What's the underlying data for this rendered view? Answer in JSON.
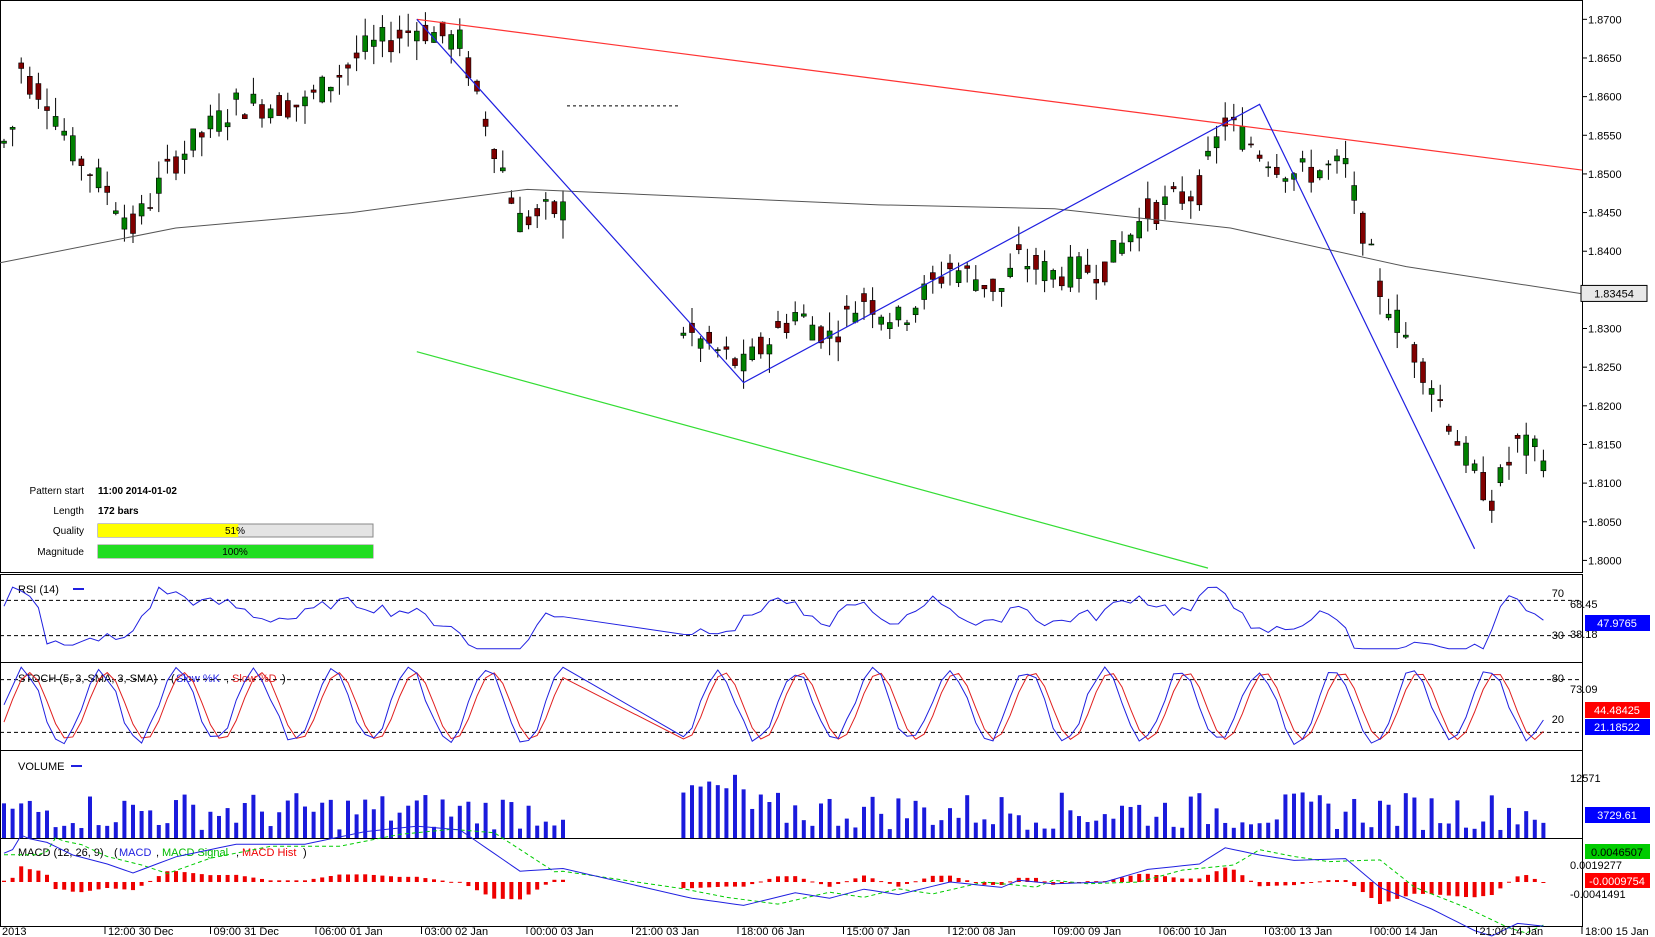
{
  "chart_data": [
    {
      "type": "candlestick",
      "ylim": [
        1.8,
        1.87
      ],
      "yticks": [
        "1.8700",
        "1.8650",
        "1.8600",
        "1.8550",
        "1.8500",
        "1.8450",
        "1.8400",
        "1.8350",
        "1.8300",
        "1.8250",
        "1.8200",
        "1.8150",
        "1.8100",
        "1.8050",
        "1.8000"
      ],
      "ytick_values": [
        1.87,
        1.865,
        1.86,
        1.855,
        1.85,
        1.845,
        1.84,
        1.835,
        1.83,
        1.825,
        1.82,
        1.815,
        1.81,
        1.805,
        1.8
      ],
      "current_price": "1.83454",
      "current_price_value": 1.83454,
      "xticks": [
        "2013",
        "12:00 30 Dec",
        "09:00 31 Dec",
        "06:00 01 Jan",
        "03:00 02 Jan",
        "00:00 03 Jan",
        "21:00 03 Jan",
        "18:00 06 Jan",
        "15:00 07 Jan",
        "12:00 08 Jan",
        "09:00 09 Jan",
        "06:00 10 Jan",
        "03:00 13 Jan",
        "00:00 14 Jan",
        "21:00 14 Jan",
        "18:00 15 Jan"
      ],
      "price_path_x": [
        0,
        1,
        2,
        3,
        5,
        8,
        12,
        15,
        20,
        27,
        35,
        42,
        48,
        53,
        60,
        70,
        73,
        80,
        86,
        92,
        96,
        100,
        104,
        110,
        116,
        118,
        122,
        128,
        133,
        139,
        142,
        146,
        150,
        156,
        160,
        166,
        171,
        173,
        176,
        180
      ],
      "price_path_y": [
        1.854,
        1.856,
        1.864,
        1.862,
        1.86,
        1.853,
        1.848,
        1.843,
        1.852,
        1.859,
        1.859,
        1.866,
        1.869,
        1.867,
        1.844,
        1.847,
        1.836,
        1.829,
        1.825,
        1.832,
        1.829,
        1.834,
        1.831,
        1.838,
        1.835,
        1.839,
        1.837,
        1.838,
        1.845,
        1.848,
        1.857,
        1.853,
        1.85,
        1.851,
        1.835,
        1.823,
        1.811,
        1.808,
        1.815,
        1.813
      ],
      "patterns": {
        "resistance": {
          "from": [
            1.87
          ],
          "to": [
            1.8505
          ],
          "color": "#ff3333"
        },
        "support": {
          "from": [
            1.827
          ],
          "to": [
            1.799
          ],
          "color": "#33dd33"
        },
        "zigzag": {
          "values": [
            1.87,
            1.823,
            1.859,
            1.8015
          ],
          "color": "#2020e0"
        },
        "moving_average": {
          "values": [
            1.8385,
            1.843,
            1.845,
            1.848,
            1.847,
            1.846,
            1.8455,
            1.843,
            1.838,
            1.8345
          ]
        }
      }
    },
    {
      "type": "line",
      "title": "RSI (14)",
      "levels": [
        "70",
        "30"
      ],
      "tick_labels": [
        "68.45",
        "38.18"
      ],
      "current": "47.9765",
      "ylim": [
        0,
        100
      ]
    },
    {
      "type": "line",
      "title": "STOCH (5, 3, SMA, 3, SMA)",
      "series": [
        {
          "name": "Slow %K",
          "color": "#2020e0"
        },
        {
          "name": "Slow %D",
          "color": "#e02020"
        }
      ],
      "levels": [
        "80",
        "20"
      ],
      "tick_labels": [
        "73.09"
      ],
      "current": [
        "44.48425",
        "21.18522"
      ],
      "ylim": [
        0,
        100
      ]
    },
    {
      "type": "bar",
      "title": "VOLUME",
      "tick_labels": [
        "12571"
      ],
      "current": "3729.61"
    },
    {
      "type": "line",
      "title": "MACD (12, 26, 9)",
      "series": [
        {
          "name": "MACD",
          "color": "#2020e0"
        },
        {
          "name": "MACD Signal",
          "color": "#00cc00"
        },
        {
          "name": "MACD Hist",
          "color": "#ee0000"
        }
      ],
      "tick_labels": [
        "0.0019277",
        "-0.0041491"
      ],
      "current": [
        "0.0046507",
        "-0.0009754"
      ]
    }
  ],
  "info": {
    "pattern_start_label": "Pattern start",
    "pattern_start_value": "11:00 2014-01-02",
    "length_label": "Length",
    "length_value": "172 bars",
    "quality_label": "Quality",
    "quality_value": "51%",
    "quality_fraction": 0.51,
    "magnitude_label": "Magnitude",
    "magnitude_value": "100%",
    "magnitude_fraction": 1.0
  },
  "colors": {
    "bull_candle": "#008000",
    "bear_candle": "#800000",
    "quality_fill": "#ffff00",
    "magnitude_fill": "#22dd22",
    "rsi_label_box": "#0000ff",
    "stoch_k_box": "#ff0000",
    "stoch_d_box": "#0000ff",
    "macd_box": "#00cc00",
    "hist_box": "#ff0000"
  }
}
